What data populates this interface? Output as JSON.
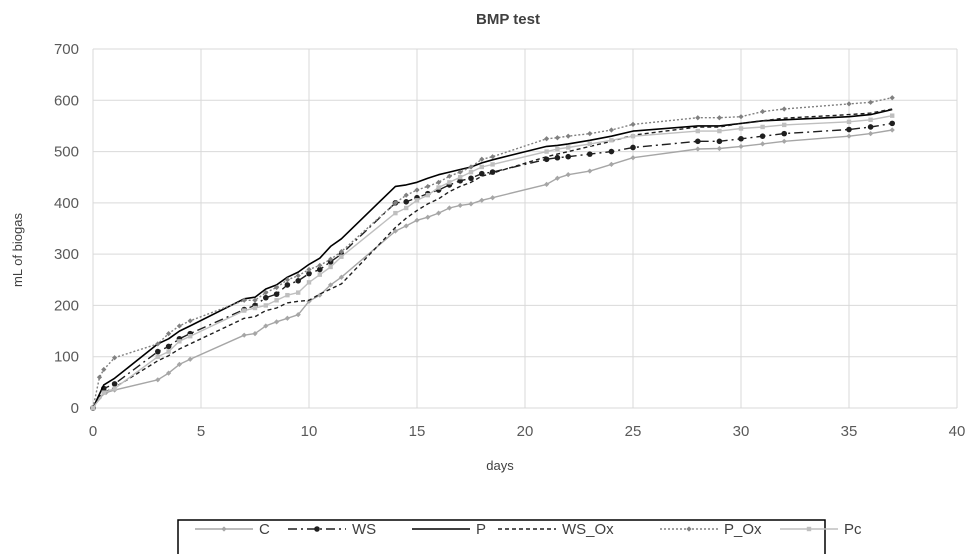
{
  "chart_data": {
    "type": "line",
    "title": "BMP test",
    "xlabel": "days",
    "ylabel": "mL of biogas",
    "xlim": [
      0,
      40
    ],
    "ylim": [
      0,
      700
    ],
    "xticks": [
      0,
      5,
      10,
      15,
      20,
      25,
      30,
      35,
      40
    ],
    "yticks": [
      0,
      100,
      200,
      300,
      400,
      500,
      600,
      700
    ],
    "grid": true,
    "legend_position": "bottom",
    "series": [
      {
        "name": "C",
        "color": "#a6a6a6",
        "dash": "",
        "width": 1.4,
        "marker": "diamond",
        "x": [
          0,
          0.3,
          0.6,
          1,
          3,
          3.5,
          4,
          4.5,
          7,
          7.5,
          8,
          8.5,
          9,
          9.5,
          10,
          10.5,
          11,
          11.5,
          14,
          14.5,
          15,
          15.5,
          16,
          16.5,
          17,
          17.5,
          18,
          18.5,
          21,
          21.5,
          22,
          23,
          24,
          25,
          28,
          29,
          30,
          31,
          32,
          35,
          36,
          37
        ],
        "y": [
          0,
          20,
          30,
          35,
          55,
          68,
          85,
          95,
          142,
          145,
          160,
          168,
          175,
          182,
          208,
          220,
          240,
          255,
          345,
          355,
          366,
          372,
          380,
          390,
          395,
          398,
          405,
          410,
          436,
          448,
          455,
          462,
          475,
          488,
          505,
          506,
          510,
          515,
          520,
          530,
          535,
          542
        ]
      },
      {
        "name": "WS",
        "color": "#1f1f1f",
        "dash": "9 4 2 4",
        "width": 1.4,
        "marker": "circle",
        "x": [
          0,
          0.5,
          1,
          3,
          3.5,
          4,
          4.5,
          7,
          7.5,
          8,
          8.5,
          9,
          9.5,
          10,
          10.5,
          11,
          11.5,
          14,
          14.5,
          15,
          15.5,
          16,
          16.5,
          17,
          17.5,
          18,
          18.5,
          21,
          21.5,
          22,
          23,
          24,
          25,
          28,
          29,
          30,
          31,
          32,
          35,
          36,
          37
        ],
        "y": [
          0,
          38,
          47,
          110,
          120,
          135,
          145,
          192,
          200,
          215,
          222,
          240,
          248,
          262,
          270,
          285,
          300,
          400,
          402,
          410,
          418,
          425,
          435,
          443,
          448,
          457,
          460,
          485,
          488,
          490,
          495,
          500,
          508,
          520,
          520,
          525,
          530,
          535,
          543,
          548,
          555
        ]
      },
      {
        "name": "P",
        "color": "#000000",
        "dash": "",
        "width": 1.6,
        "marker": "none",
        "x": [
          0,
          0.5,
          1,
          3,
          3.5,
          4,
          4.5,
          7,
          7.5,
          8,
          8.5,
          9,
          9.5,
          10,
          10.5,
          11,
          11.5,
          14,
          14.5,
          15,
          15.5,
          16,
          16.5,
          17,
          17.5,
          18,
          18.5,
          21,
          21.5,
          22,
          23,
          24,
          25,
          28,
          29,
          30,
          31,
          32,
          35,
          36,
          37
        ],
        "y": [
          0,
          45,
          58,
          125,
          135,
          150,
          160,
          213,
          216,
          232,
          240,
          255,
          265,
          280,
          292,
          315,
          330,
          432,
          435,
          440,
          448,
          455,
          460,
          465,
          470,
          478,
          484,
          510,
          512,
          515,
          522,
          530,
          540,
          550,
          550,
          555,
          560,
          562,
          568,
          572,
          582
        ]
      },
      {
        "name": "WS_Ox",
        "color": "#1f1f1f",
        "dash": "4 3",
        "width": 1.4,
        "marker": "none",
        "x": [
          0,
          0.5,
          1,
          3,
          3.5,
          4,
          4.5,
          7,
          7.5,
          8,
          8.5,
          9,
          9.5,
          10,
          10.5,
          11,
          11.5,
          14,
          14.5,
          15,
          15.5,
          16,
          16.5,
          17,
          17.5,
          18,
          18.5,
          21,
          21.5,
          22,
          23,
          24,
          25,
          28,
          29,
          30,
          31,
          32,
          35,
          36,
          37
        ],
        "y": [
          0,
          30,
          40,
          92,
          102,
          115,
          125,
          175,
          178,
          190,
          195,
          205,
          208,
          210,
          222,
          232,
          242,
          352,
          370,
          385,
          398,
          408,
          422,
          432,
          440,
          452,
          458,
          490,
          495,
          500,
          510,
          520,
          532,
          548,
          548,
          555,
          560,
          565,
          572,
          575,
          583
        ]
      },
      {
        "name": "P_Ox",
        "color": "#808080",
        "dash": "2 2",
        "width": 1.4,
        "marker": "diamond",
        "x": [
          0,
          0.3,
          0.5,
          1,
          3,
          3.5,
          4,
          4.5,
          7,
          7.5,
          8,
          8.5,
          9,
          9.5,
          10,
          10.5,
          11,
          11.5,
          14,
          14.5,
          15,
          15.5,
          16,
          16.5,
          17,
          17.5,
          18,
          18.5,
          21,
          21.5,
          22,
          23,
          24,
          25,
          28,
          29,
          30,
          31,
          32,
          35,
          36,
          37
        ],
        "y": [
          0,
          60,
          75,
          98,
          125,
          145,
          160,
          170,
          210,
          210,
          225,
          235,
          250,
          258,
          270,
          278,
          290,
          305,
          400,
          415,
          425,
          432,
          440,
          452,
          460,
          470,
          485,
          490,
          525,
          527,
          530,
          535,
          542,
          553,
          566,
          566,
          568,
          578,
          583,
          593,
          596,
          605
        ]
      },
      {
        "name": "Pc",
        "color": "#bfbfbf",
        "dash": "",
        "width": 1.4,
        "marker": "square",
        "x": [
          0,
          0.5,
          1,
          3,
          3.5,
          4,
          4.5,
          7,
          7.5,
          8,
          8.5,
          9,
          9.5,
          10,
          10.5,
          11,
          11.5,
          14,
          14.5,
          15,
          15.5,
          16,
          16.5,
          17,
          17.5,
          18,
          18.5,
          21,
          21.5,
          22,
          23,
          24,
          25,
          28,
          29,
          30,
          31,
          32,
          35,
          36,
          37
        ],
        "y": [
          0,
          30,
          38,
          100,
          110,
          130,
          140,
          190,
          195,
          200,
          210,
          220,
          225,
          245,
          260,
          275,
          295,
          380,
          390,
          405,
          415,
          430,
          440,
          450,
          460,
          470,
          475,
          500,
          505,
          508,
          515,
          522,
          530,
          540,
          540,
          545,
          548,
          552,
          558,
          562,
          570
        ]
      }
    ]
  }
}
